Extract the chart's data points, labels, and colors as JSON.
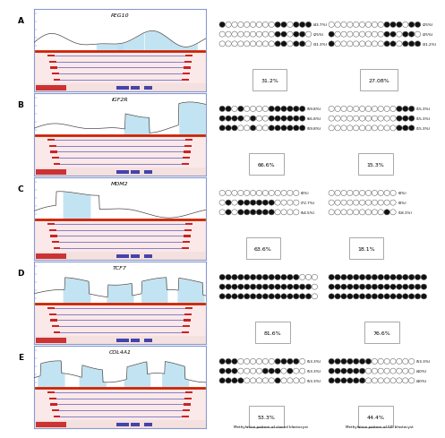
{
  "panels": [
    {
      "label": "A",
      "gene": "PEG10",
      "left_pct": "31.2%",
      "right_pct": "27.08%",
      "left_rows": [
        {
          "filled": [
            0,
            9,
            10,
            12,
            13,
            14
          ],
          "total": 15,
          "pct": "(43.7%)"
        },
        {
          "filled": [
            9,
            10,
            12,
            13
          ],
          "total": 15,
          "pct": "(25%)"
        },
        {
          "filled": [
            9,
            10,
            12,
            13
          ],
          "total": 15,
          "pct": "(31.3%)"
        }
      ],
      "right_rows": [
        {
          "filled": [
            9,
            10,
            11,
            13,
            14
          ],
          "total": 15,
          "pct": "(25%)"
        },
        {
          "filled": [
            0,
            9,
            10,
            12,
            13
          ],
          "total": 15,
          "pct": "(25%)"
        },
        {
          "filled": [
            0,
            9,
            10,
            12,
            13,
            14
          ],
          "total": 15,
          "pct": "(31.2%)"
        }
      ],
      "wave_type": "PEG10"
    },
    {
      "label": "B",
      "gene": "IGF2R",
      "left_pct": "66.6%",
      "right_pct": "15.3%",
      "left_rows": [
        {
          "filled": [
            0,
            1,
            3,
            8,
            9,
            10,
            11,
            12,
            13
          ],
          "total": 14,
          "pct": "(59.8%)"
        },
        {
          "filled": [
            0,
            1,
            2,
            3,
            5,
            8,
            9,
            10,
            11,
            12,
            13
          ],
          "total": 14,
          "pct": "(66.8%)"
        },
        {
          "filled": [
            0,
            1,
            2,
            5,
            8,
            9,
            10,
            11,
            12,
            13
          ],
          "total": 14,
          "pct": "(59.8%)"
        }
      ],
      "right_rows": [
        {
          "filled": [
            11,
            12,
            13
          ],
          "total": 14,
          "pct": "(15.3%)"
        },
        {
          "filled": [
            11,
            12,
            13
          ],
          "total": 14,
          "pct": "(15.3%)"
        },
        {
          "filled": [
            11,
            12,
            13
          ],
          "total": 14,
          "pct": "(15.3%)"
        }
      ],
      "wave_type": "IGF2R"
    },
    {
      "label": "C",
      "gene": "MDM2",
      "left_pct": "63.6%",
      "right_pct": "18.1%",
      "left_rows": [
        {
          "filled": [],
          "total": 13,
          "pct": "(0%)"
        },
        {
          "filled": [
            1,
            3,
            4,
            5,
            6,
            7,
            8
          ],
          "total": 13,
          "pct": "(72.7%)"
        },
        {
          "filled": [
            1,
            3,
            4,
            5,
            6,
            7,
            8
          ],
          "total": 13,
          "pct": "(54.5%)"
        }
      ],
      "right_rows": [
        {
          "filled": [],
          "total": 11,
          "pct": "(0%)"
        },
        {
          "filled": [],
          "total": 11,
          "pct": "(0%)"
        },
        {
          "filled": [
            9
          ],
          "total": 11,
          "pct": "(18.1%)"
        }
      ],
      "wave_type": "MDM2"
    },
    {
      "label": "D",
      "gene": "TCF7",
      "left_pct": "81.6%",
      "right_pct": "76.6%",
      "left_rows": [
        {
          "filled": [
            0,
            1,
            2,
            3,
            4,
            5,
            6,
            7,
            8,
            9,
            10,
            11,
            12
          ],
          "total": 16,
          "pct": ""
        },
        {
          "filled": [
            0,
            1,
            2,
            3,
            4,
            5,
            6,
            7,
            8,
            9,
            10,
            11,
            12,
            13,
            14
          ],
          "total": 16,
          "pct": ""
        },
        {
          "filled": [
            0,
            1,
            2,
            3,
            4,
            5,
            6,
            7,
            8,
            9,
            10,
            11,
            12,
            13,
            14
          ],
          "total": 16,
          "pct": ""
        }
      ],
      "right_rows": [
        {
          "filled": [
            0,
            1,
            2,
            3,
            4,
            5,
            6,
            7,
            8,
            9,
            10,
            11,
            12,
            13,
            14,
            15
          ],
          "total": 16,
          "pct": ""
        },
        {
          "filled": [
            0,
            1,
            2,
            3,
            4,
            5,
            6,
            7,
            8,
            9,
            10,
            11,
            12,
            13,
            14,
            15
          ],
          "total": 16,
          "pct": ""
        },
        {
          "filled": [
            0,
            1,
            2,
            3,
            4,
            5,
            6,
            7,
            8,
            9,
            10,
            11,
            12,
            13,
            14,
            15
          ],
          "total": 16,
          "pct": ""
        }
      ],
      "wave_type": "TCF7"
    },
    {
      "label": "E",
      "gene": "COL4A1",
      "left_pct": "53.3%",
      "right_pct": "44.4%",
      "left_rows": [
        {
          "filled": [
            0,
            1,
            2,
            9,
            10,
            11,
            12
          ],
          "total": 14,
          "pct": "(53.3%)"
        },
        {
          "filled": [
            0,
            1,
            2,
            7,
            8,
            9,
            11
          ],
          "total": 14,
          "pct": "(53.3%)"
        },
        {
          "filled": [
            0,
            1,
            2,
            3,
            9
          ],
          "total": 14,
          "pct": "(53.3%)"
        }
      ],
      "right_rows": [
        {
          "filled": [
            0,
            1,
            2,
            3,
            4,
            5,
            6
          ],
          "total": 14,
          "pct": "(53.3%)"
        },
        {
          "filled": [
            0,
            1,
            2,
            3,
            4,
            5
          ],
          "total": 14,
          "pct": "(40%)"
        },
        {
          "filled": [
            0,
            1,
            2,
            3,
            4,
            5
          ],
          "total": 14,
          "pct": "(40%)"
        }
      ],
      "wave_type": "COL4A1"
    }
  ],
  "bottom_labels": [
    "Methylation pattern of cloned blastocyst",
    "Methylation pattern of IVF blastocyst"
  ],
  "circle_filled_color": "#111111",
  "circle_empty_color": "#ffffff",
  "circle_edge_color": "#555555",
  "panel_border_color": "#8899cc",
  "red_line_color": "#cc2200",
  "peak_color": "#b8dff0"
}
